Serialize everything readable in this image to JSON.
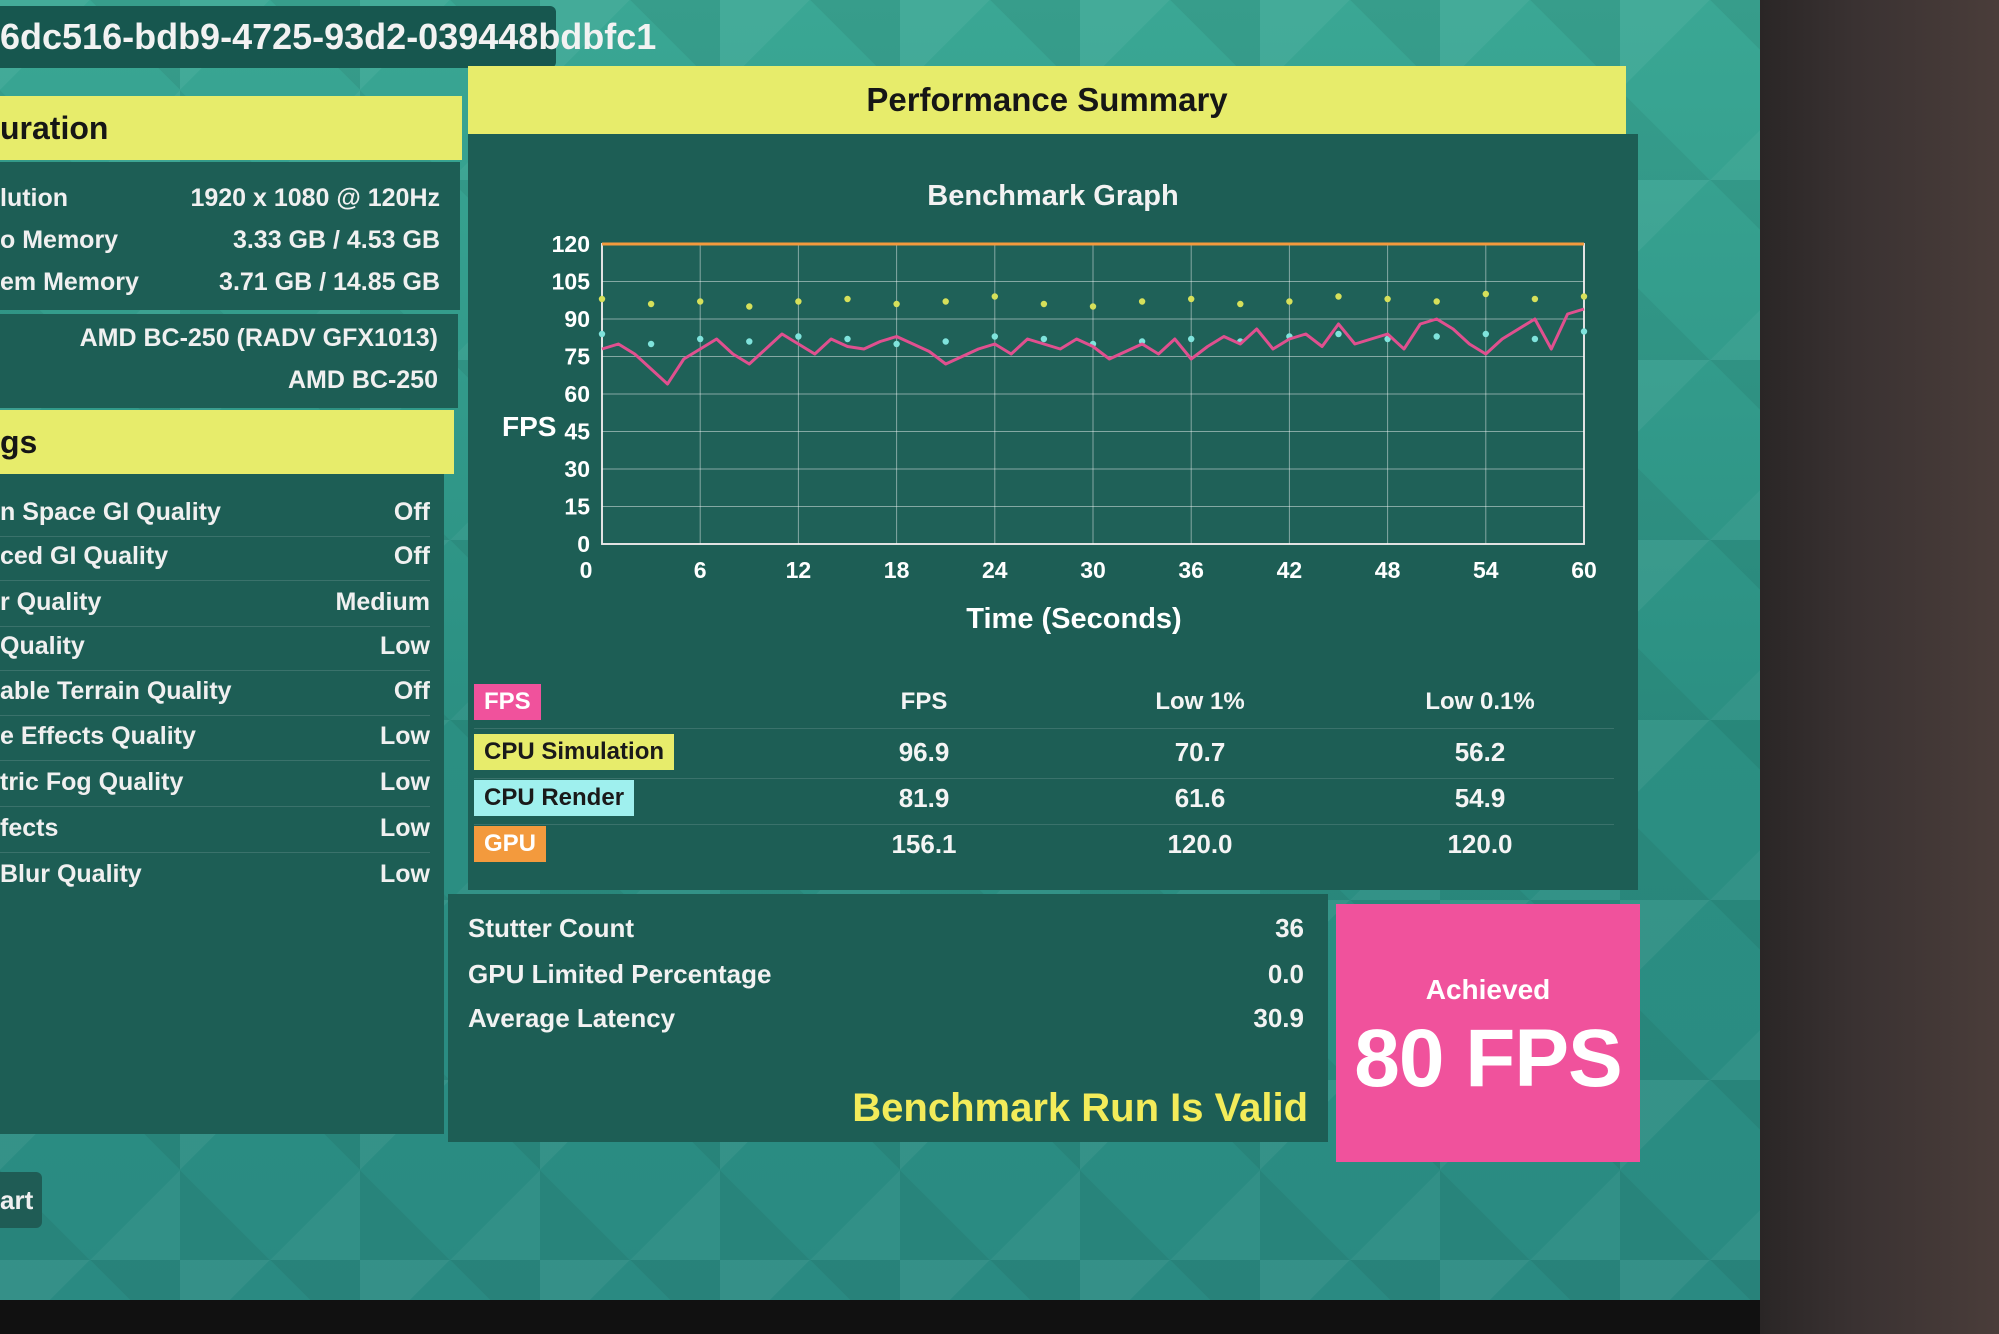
{
  "run_id": "6dc516-bdb9-4725-93d2-039448bdbfc1",
  "configuration": {
    "title": "uration",
    "rows": [
      {
        "label": "lution",
        "value": "1920 x 1080 @ 120Hz"
      },
      {
        "label": "o Memory",
        "value": "3.33 GB / 4.53 GB"
      },
      {
        "label": "em Memory",
        "value": "3.71 GB / 14.85 GB"
      }
    ],
    "gpu_rows": [
      {
        "label": "",
        "value": "AMD BC-250 (RADV GFX1013)"
      },
      {
        "label": "",
        "value": "AMD BC-250"
      }
    ]
  },
  "settings": {
    "title": "gs",
    "rows": [
      {
        "label": "n Space GI Quality",
        "value": "Off"
      },
      {
        "label": "ced GI Quality",
        "value": "Off"
      },
      {
        "label": "r Quality",
        "value": "Medium"
      },
      {
        "label": "Quality",
        "value": "Low"
      },
      {
        "label": "able Terrain Quality",
        "value": "Off"
      },
      {
        "label": "e Effects Quality",
        "value": "Low"
      },
      {
        "label": "tric Fog Quality",
        "value": "Low"
      },
      {
        "label": "fects",
        "value": "Low"
      },
      {
        "label": "Blur Quality",
        "value": "Low"
      }
    ]
  },
  "restart_label": "art",
  "performance": {
    "title": "Performance Summary",
    "graph_title": "Benchmark Graph",
    "table_headers": [
      "FPS",
      "Low 1%",
      "Low 0.1%"
    ],
    "rows": [
      {
        "label": "FPS",
        "color": "#f0529c",
        "values": [
          "",
          "",
          ""
        ]
      },
      {
        "label": "CPU Simulation",
        "color": "#e7ec6b",
        "values": [
          "96.9",
          "70.7",
          "56.2"
        ]
      },
      {
        "label": "CPU Render",
        "color": "#9ff0ee",
        "values": [
          "81.9",
          "61.6",
          "54.9"
        ]
      },
      {
        "label": "GPU",
        "color": "#f39a3d",
        "values": [
          "156.1",
          "120.0",
          "120.0"
        ]
      }
    ]
  },
  "stats": {
    "rows": [
      {
        "label": "Stutter Count",
        "value": "36"
      },
      {
        "label": "GPU Limited Percentage",
        "value": "0.0"
      },
      {
        "label": "Average Latency",
        "value": "30.9"
      }
    ],
    "valid_text": "Benchmark Run Is Valid"
  },
  "achieved": {
    "label": "Achieved",
    "value": "80 FPS"
  },
  "chart_data": {
    "type": "line",
    "title": "Benchmark Graph",
    "xlabel": "Time (Seconds)",
    "ylabel": "FPS",
    "xlim": [
      0,
      60
    ],
    "ylim": [
      0,
      120
    ],
    "xticks": [
      0,
      6,
      12,
      18,
      24,
      30,
      36,
      42,
      48,
      54,
      60
    ],
    "yticks": [
      0,
      15,
      30,
      45,
      60,
      75,
      90,
      105,
      120
    ],
    "grid": true,
    "series": [
      {
        "name": "GPU",
        "color": "#f39a3d",
        "kind": "line",
        "x": [
          0,
          6,
          12,
          18,
          24,
          30,
          36,
          42,
          48,
          54,
          60
        ],
        "y": [
          120,
          120,
          120,
          120,
          120,
          120,
          120,
          120,
          120,
          120,
          120
        ]
      },
      {
        "name": "CPU Simulation",
        "color": "#d6e05a",
        "kind": "scatter",
        "x": [
          0,
          3,
          6,
          9,
          12,
          15,
          18,
          21,
          24,
          27,
          30,
          33,
          36,
          39,
          42,
          45,
          48,
          51,
          54,
          57,
          60
        ],
        "y": [
          98,
          96,
          97,
          95,
          97,
          98,
          96,
          97,
          99,
          96,
          95,
          97,
          98,
          96,
          97,
          99,
          98,
          97,
          100,
          98,
          99
        ]
      },
      {
        "name": "CPU Render",
        "color": "#7fe3dc",
        "kind": "scatter",
        "x": [
          0,
          3,
          6,
          9,
          12,
          15,
          18,
          21,
          24,
          27,
          30,
          33,
          36,
          39,
          42,
          45,
          48,
          51,
          54,
          57,
          60
        ],
        "y": [
          84,
          80,
          82,
          81,
          83,
          82,
          80,
          81,
          83,
          82,
          80,
          81,
          82,
          81,
          83,
          84,
          82,
          83,
          84,
          82,
          85
        ]
      },
      {
        "name": "FPS",
        "color": "#e0508f",
        "kind": "line",
        "x": [
          0,
          1,
          2,
          3,
          4,
          5,
          6,
          7,
          8,
          9,
          10,
          11,
          12,
          13,
          14,
          15,
          16,
          17,
          18,
          19,
          20,
          21,
          22,
          23,
          24,
          25,
          26,
          27,
          28,
          29,
          30,
          31,
          32,
          33,
          34,
          35,
          36,
          37,
          38,
          39,
          40,
          41,
          42,
          43,
          44,
          45,
          46,
          47,
          48,
          49,
          50,
          51,
          52,
          53,
          54,
          55,
          56,
          57,
          58,
          59,
          60
        ],
        "y": [
          78,
          80,
          76,
          70,
          64,
          74,
          78,
          82,
          76,
          72,
          78,
          84,
          80,
          76,
          82,
          79,
          78,
          81,
          83,
          80,
          77,
          72,
          75,
          78,
          80,
          76,
          82,
          80,
          78,
          82,
          79,
          74,
          77,
          80,
          76,
          82,
          74,
          79,
          83,
          80,
          86,
          78,
          82,
          84,
          79,
          88,
          80,
          82,
          84,
          78,
          88,
          90,
          86,
          80,
          76,
          82,
          86,
          90,
          78,
          92,
          94
        ]
      }
    ]
  }
}
